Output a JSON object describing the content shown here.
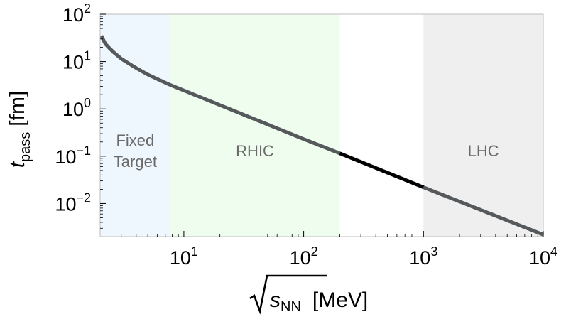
{
  "chart_data": {
    "type": "line",
    "title": "",
    "xlabel": {
      "prefix": "",
      "main": "s",
      "sub": "NN",
      "unit": "[MeV]",
      "sqrt": true
    },
    "ylabel": {
      "main": "t",
      "sub": "pass",
      "unit": "[fm]"
    },
    "x_scale": "log",
    "y_scale": "log",
    "xlim": [
      2.0,
      10000
    ],
    "ylim": [
      0.002,
      100
    ],
    "x_ticks": [
      {
        "value": 10,
        "base": "10",
        "exp": "1"
      },
      {
        "value": 100,
        "base": "10",
        "exp": "2"
      },
      {
        "value": 1000,
        "base": "10",
        "exp": "3"
      },
      {
        "value": 10000,
        "base": "10",
        "exp": "4"
      }
    ],
    "y_ticks": [
      {
        "value": 100,
        "base": "10",
        "exp": "2"
      },
      {
        "value": 10,
        "base": "10",
        "exp": "1"
      },
      {
        "value": 1,
        "base": "10",
        "exp": "0"
      },
      {
        "value": 0.1,
        "base": "10",
        "exp": "−1"
      },
      {
        "value": 0.01,
        "base": "10",
        "exp": "−2"
      }
    ],
    "grid": false,
    "regions": [
      {
        "label_lines": [
          "Fixed",
          "Target"
        ],
        "x_from": 2.0,
        "x_to": 7.7,
        "color": "#eef6fe"
      },
      {
        "label_lines": [
          "RHIC"
        ],
        "x_from": 7.7,
        "x_to": 200,
        "color": "#effdee"
      },
      {
        "label_lines": [
          "LHC"
        ],
        "x_from": 1000,
        "x_to": 10000,
        "color": "#efefef"
      }
    ],
    "series": [
      {
        "color": "#55595c",
        "highlight_color": "#000000",
        "highlight_range": [
          200,
          1000
        ],
        "points": [
          {
            "x": 2.05,
            "y": 35
          },
          {
            "x": 2.2,
            "y": 24
          },
          {
            "x": 2.5,
            "y": 17
          },
          {
            "x": 3.0,
            "y": 11.5
          },
          {
            "x": 4.0,
            "y": 7.3
          },
          {
            "x": 5.0,
            "y": 5.3
          },
          {
            "x": 7.7,
            "y": 3.2
          },
          {
            "x": 10,
            "y": 2.45
          },
          {
            "x": 100,
            "y": 0.23
          },
          {
            "x": 200,
            "y": 0.115
          },
          {
            "x": 1000,
            "y": 0.022
          },
          {
            "x": 10000,
            "y": 0.0022
          }
        ]
      }
    ]
  }
}
